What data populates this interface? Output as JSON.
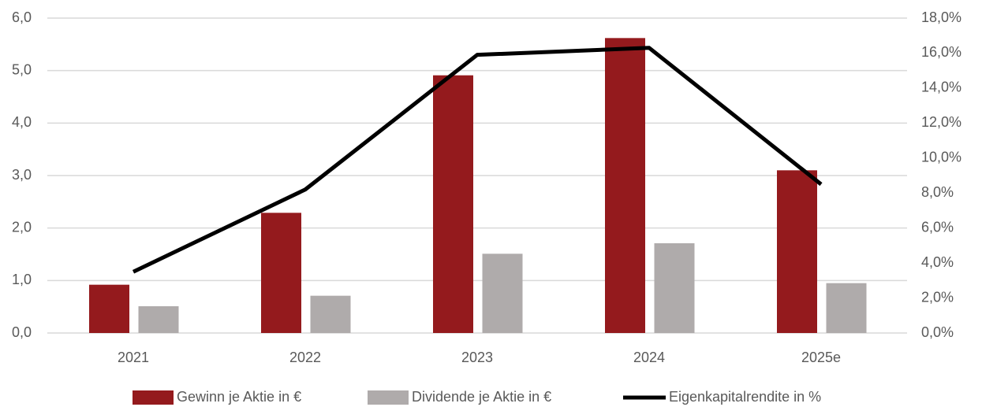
{
  "chart_data": {
    "type": "bar_line",
    "categories": [
      "2021",
      "2022",
      "2023",
      "2024",
      "2025e"
    ],
    "series": [
      {
        "name": "Gewinn je Aktie in €",
        "color": "#941a1d",
        "type": "bar",
        "values": [
          0.92,
          2.29,
          4.91,
          5.62,
          3.1
        ]
      },
      {
        "name": "Dividende je Aktie in €",
        "color": "#afabab",
        "type": "bar",
        "values": [
          0.51,
          0.71,
          1.51,
          1.71,
          0.95
        ]
      },
      {
        "name": "Eigenkapitalrendite in %",
        "color": "#000000",
        "type": "line",
        "axis": "y2",
        "values": [
          3.5,
          8.2,
          15.9,
          16.3,
          8.5
        ]
      }
    ],
    "ylim": [
      0,
      6
    ],
    "yticks": [
      {
        "value": 0,
        "label": "0,0"
      },
      {
        "value": 1,
        "label": "1,0"
      },
      {
        "value": 2,
        "label": "2,0"
      },
      {
        "value": 3,
        "label": "3,0"
      },
      {
        "value": 4,
        "label": "4,0"
      },
      {
        "value": 5,
        "label": "5,0"
      },
      {
        "value": 6,
        "label": "6,0"
      }
    ],
    "y2lim": [
      0,
      18
    ],
    "y2ticks": [
      {
        "value": 0,
        "label": "0,0%"
      },
      {
        "value": 2,
        "label": "2,0%"
      },
      {
        "value": 4,
        "label": "4,0%"
      },
      {
        "value": 6,
        "label": "6,0%"
      },
      {
        "value": 8,
        "label": "8,0%"
      },
      {
        "value": 10,
        "label": "10,0%"
      },
      {
        "value": 12,
        "label": "12,0%"
      },
      {
        "value": 14,
        "label": "14,0%"
      },
      {
        "value": 16,
        "label": "16,0%"
      },
      {
        "value": 18,
        "label": "18,0%"
      }
    ],
    "grid": true,
    "legend": "bottom"
  }
}
